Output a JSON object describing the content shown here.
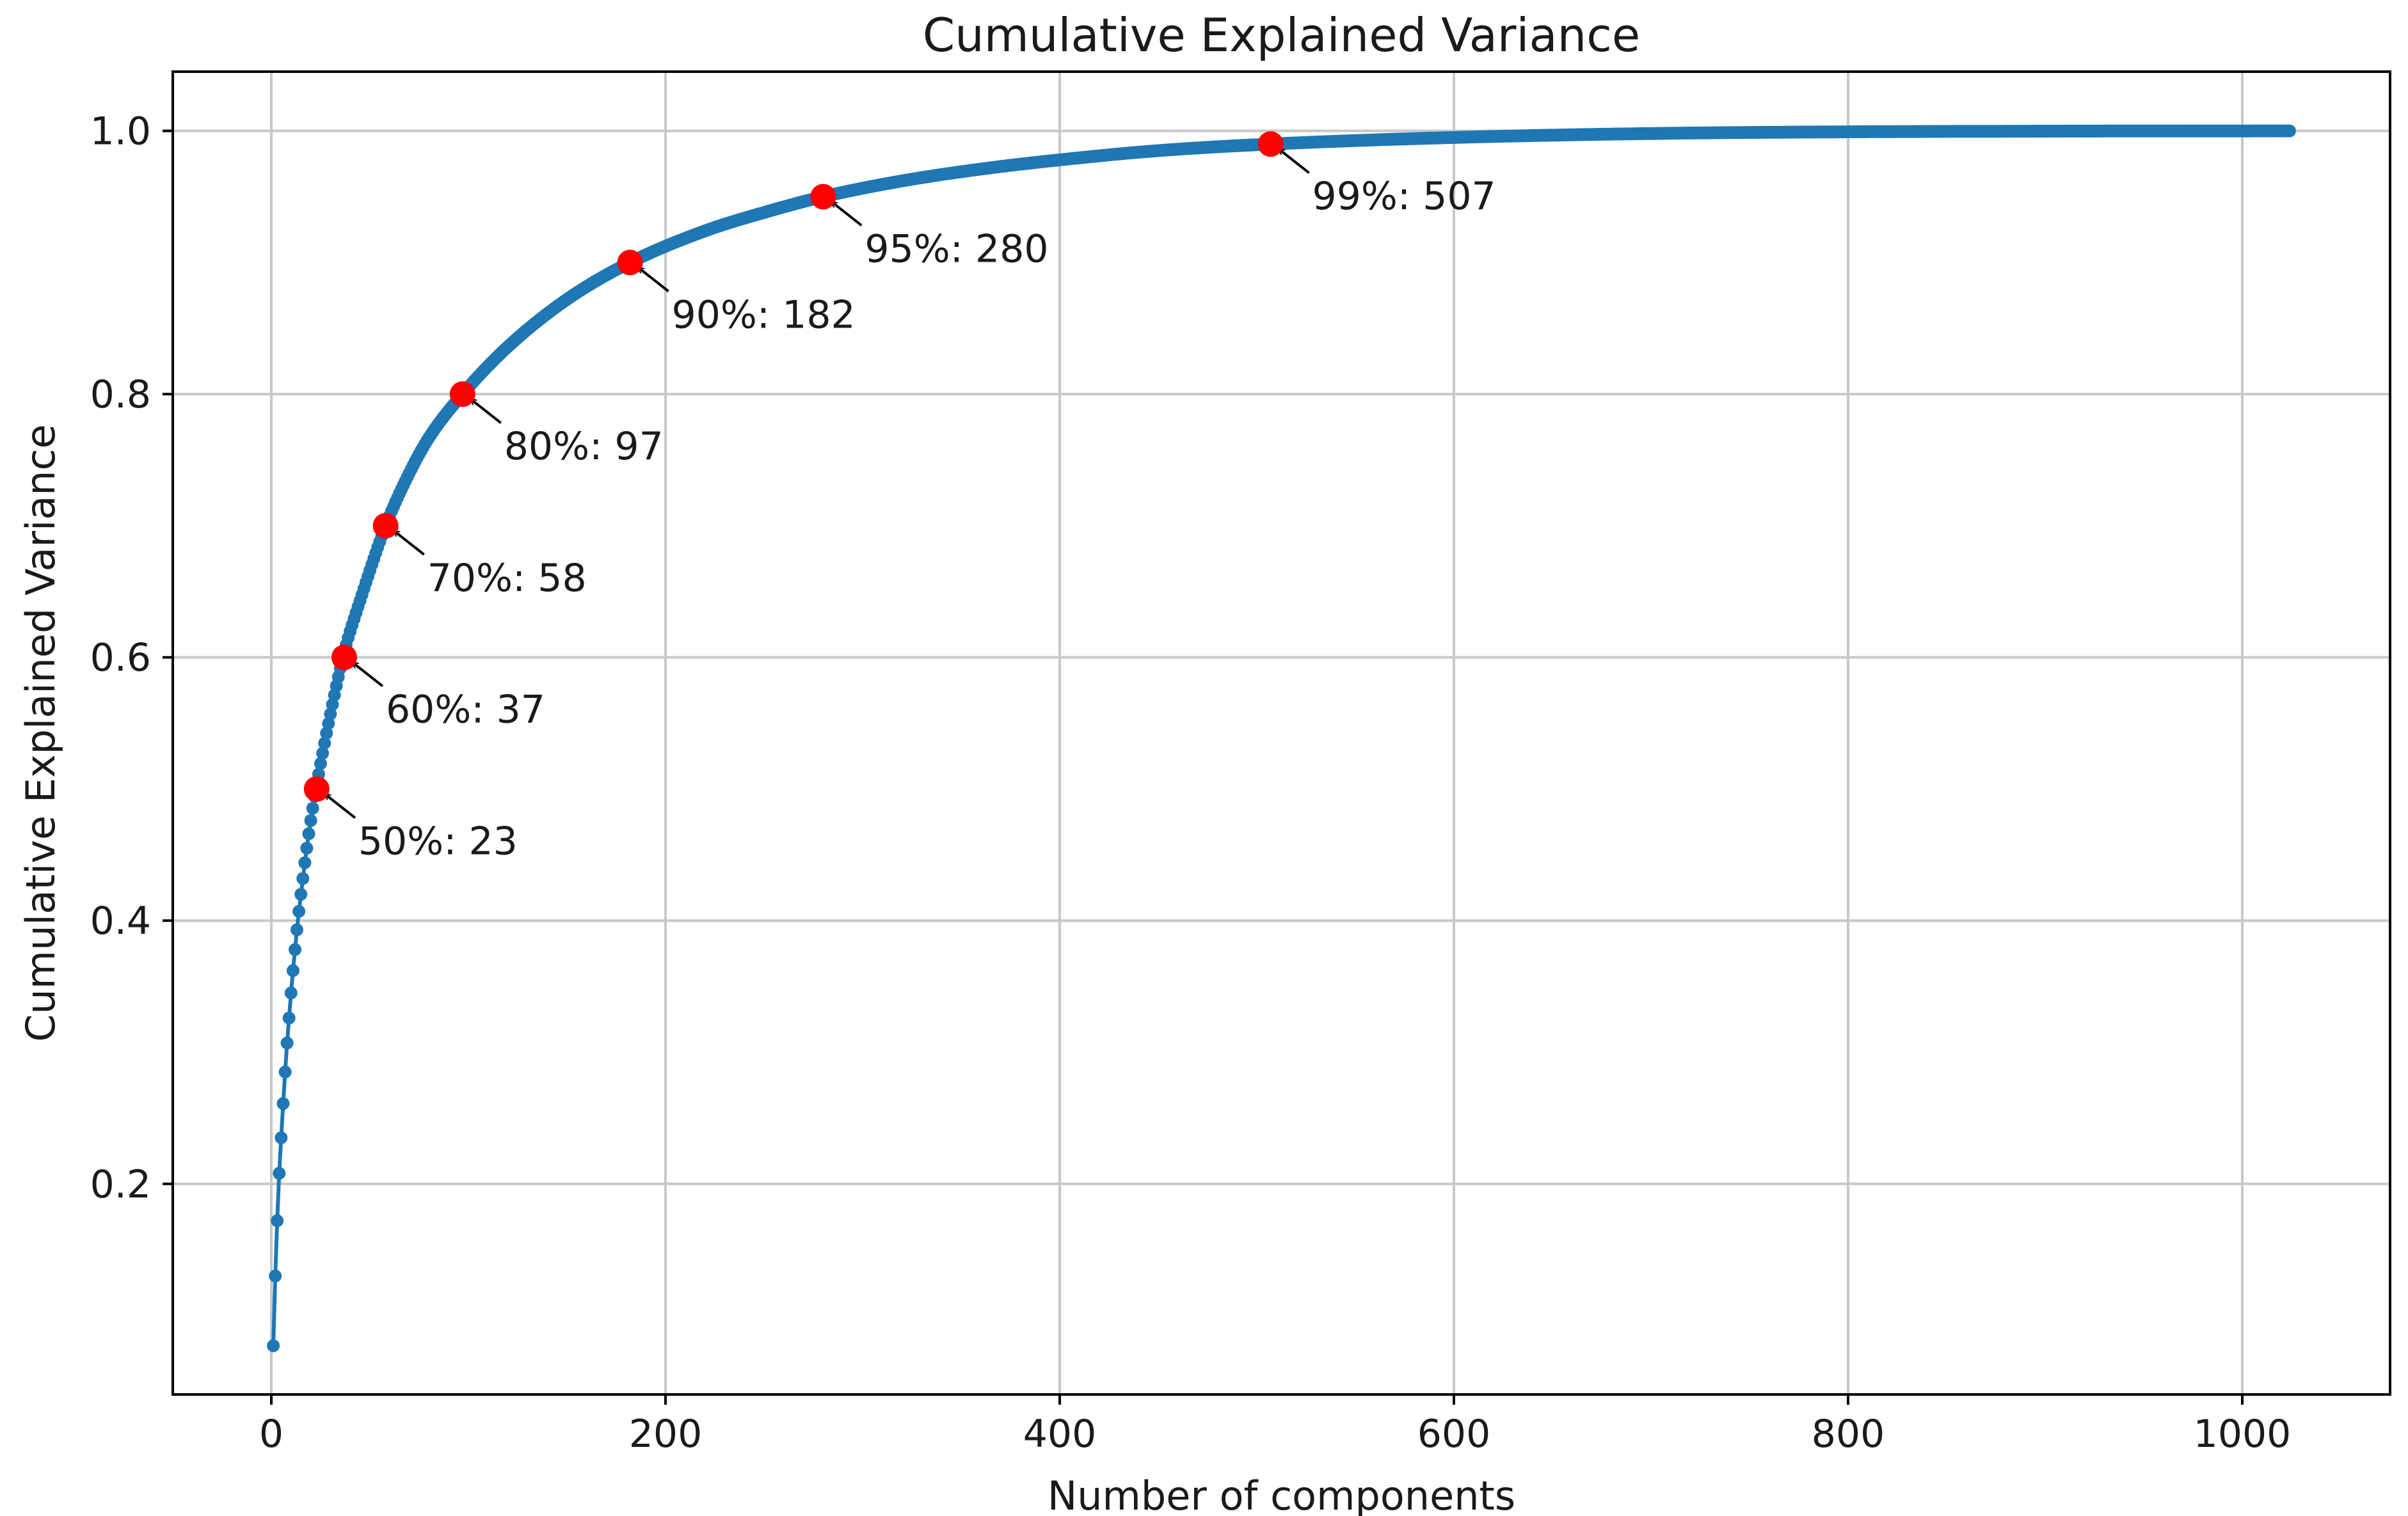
{
  "chart_data": {
    "type": "line",
    "title": "Cumulative Explained Variance",
    "xlabel": "Number of components",
    "ylabel": "Cumulative Explained Variance",
    "xlim": [
      -50,
      1075
    ],
    "ylim": [
      0.04,
      1.045
    ],
    "xticks": [
      0,
      200,
      400,
      600,
      800,
      1000
    ],
    "yticks": [
      0.2,
      0.4,
      0.6,
      0.8,
      1.0
    ],
    "xtick_labels": [
      "0",
      "200",
      "400",
      "600",
      "800",
      "1000"
    ],
    "ytick_labels": [
      "0.2",
      "0.4",
      "0.6",
      "0.8",
      "1.0"
    ],
    "grid": true,
    "colors": {
      "series": "#1f77b4",
      "threshold_marker": "#ff0000",
      "arrow": "#000000"
    },
    "series": [
      {
        "n_components": 1024,
        "marker": "dot",
        "curve": {
          "x": [
            1,
            2,
            3,
            4,
            5,
            6,
            7,
            8,
            9,
            10,
            11,
            12,
            13,
            14,
            15,
            16,
            17,
            18,
            19,
            20,
            23,
            30,
            37,
            45,
            58,
            70,
            80,
            97,
            120,
            150,
            182,
            220,
            250,
            280,
            320,
            360,
            400,
            450,
            507,
            600,
            700,
            800,
            900,
            1024
          ],
          "y": [
            0.077,
            0.13,
            0.172,
            0.208,
            0.235,
            0.261,
            0.285,
            0.307,
            0.326,
            0.345,
            0.362,
            0.378,
            0.393,
            0.407,
            0.42,
            0.432,
            0.444,
            0.455,
            0.466,
            0.476,
            0.503,
            0.557,
            0.604,
            0.643,
            0.7,
            0.74,
            0.767,
            0.8,
            0.836,
            0.872,
            0.9,
            0.924,
            0.938,
            0.95,
            0.962,
            0.971,
            0.978,
            0.985,
            0.99,
            0.995,
            0.998,
            0.9993,
            0.9998,
            1.0
          ]
        }
      }
    ],
    "thresholds": [
      {
        "x": 23,
        "y": 0.5,
        "label": "50%: 23"
      },
      {
        "x": 37,
        "y": 0.6,
        "label": "60%: 37"
      },
      {
        "x": 58,
        "y": 0.7,
        "label": "70%: 58"
      },
      {
        "x": 97,
        "y": 0.8,
        "label": "80%: 97"
      },
      {
        "x": 182,
        "y": 0.9,
        "label": "90%: 182"
      },
      {
        "x": 280,
        "y": 0.95,
        "label": "95%: 280"
      },
      {
        "x": 507,
        "y": 0.99,
        "label": "99%: 507"
      }
    ]
  }
}
